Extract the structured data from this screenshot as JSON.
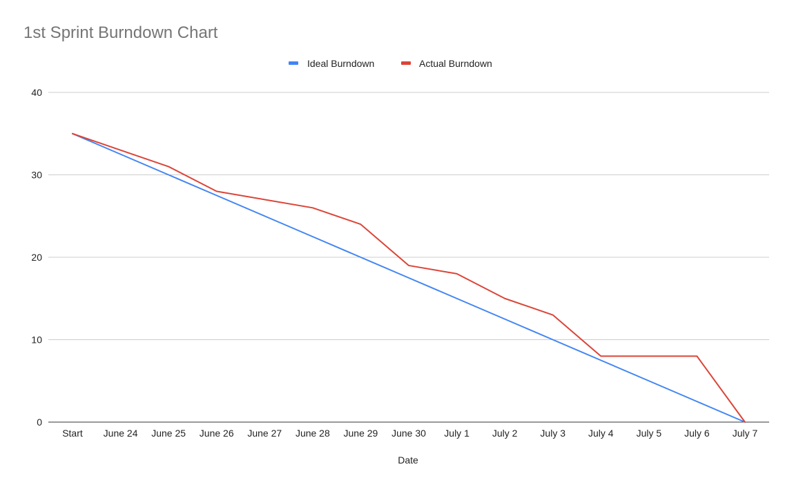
{
  "chart_data": {
    "type": "line",
    "title": "1st Sprint Burndown Chart",
    "xlabel": "Date",
    "ylabel": "",
    "categories": [
      "Start",
      "June 24",
      "June 25",
      "June 26",
      "June 27",
      "June 28",
      "June 29",
      "June 30",
      "July 1",
      "July 2",
      "July 3",
      "July 4",
      "July 5",
      "July 6",
      "July 7"
    ],
    "ylim": [
      0,
      40
    ],
    "yticks": [
      0,
      10,
      20,
      30,
      40
    ],
    "grid": true,
    "legend_position": "top",
    "series": [
      {
        "name": "Ideal Burndown",
        "color": "#4285f4",
        "values": [
          35,
          32.5,
          30,
          27.5,
          25,
          22.5,
          20,
          17.5,
          15,
          12.5,
          10,
          7.5,
          5,
          2.5,
          0
        ]
      },
      {
        "name": "Actual Burndown",
        "color": "#db4437",
        "values": [
          35,
          33,
          31,
          28,
          27,
          26,
          24,
          19,
          18,
          15,
          13,
          8,
          8,
          8,
          0
        ]
      }
    ]
  }
}
